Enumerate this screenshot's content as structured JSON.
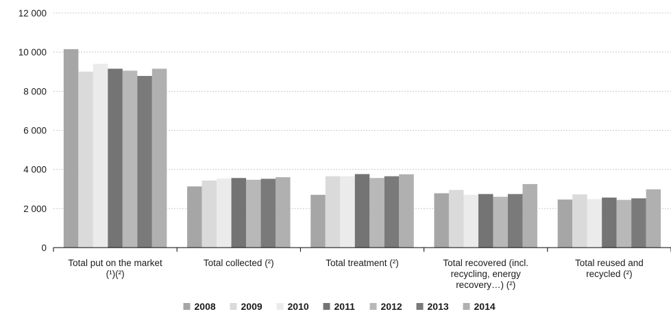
{
  "chart_data": {
    "type": "bar",
    "title": "",
    "xlabel": "",
    "ylabel": "",
    "ylim": [
      0,
      12000
    ],
    "yticks": [
      0,
      2000,
      4000,
      6000,
      8000,
      10000,
      12000
    ],
    "ytick_labels": [
      "0",
      "2 000",
      "4 000",
      "6 000",
      "8 000",
      "10 000",
      "12 000"
    ],
    "grid": true,
    "legend_position": "bottom",
    "categories": [
      [
        "Total put on the market",
        "(¹)(²)"
      ],
      [
        "Total collected (²)"
      ],
      [
        "Total treatment (²)"
      ],
      [
        "Total recovered  (incl.",
        "recycling, energy",
        "recovery…)  (²)"
      ],
      [
        "Total reused and",
        "recycled (²)"
      ]
    ],
    "series": [
      {
        "name": "2008",
        "color": "#a6a6a6",
        "values": [
          10150,
          3130,
          2700,
          2780,
          2460
        ]
      },
      {
        "name": "2009",
        "color": "#dadada",
        "values": [
          9000,
          3430,
          3650,
          2950,
          2720
        ]
      },
      {
        "name": "2010",
        "color": "#ebebeb",
        "values": [
          9400,
          3530,
          3650,
          2700,
          2480
        ]
      },
      {
        "name": "2011",
        "color": "#747474",
        "values": [
          9150,
          3560,
          3760,
          2740,
          2560
        ]
      },
      {
        "name": "2012",
        "color": "#b8b8b8",
        "values": [
          9050,
          3470,
          3560,
          2600,
          2440
        ]
      },
      {
        "name": "2013",
        "color": "#7a7a7a",
        "values": [
          8780,
          3520,
          3650,
          2740,
          2520
        ]
      },
      {
        "name": "2014",
        "color": "#b0b0b0",
        "values": [
          9150,
          3600,
          3750,
          3250,
          2980
        ]
      }
    ]
  }
}
